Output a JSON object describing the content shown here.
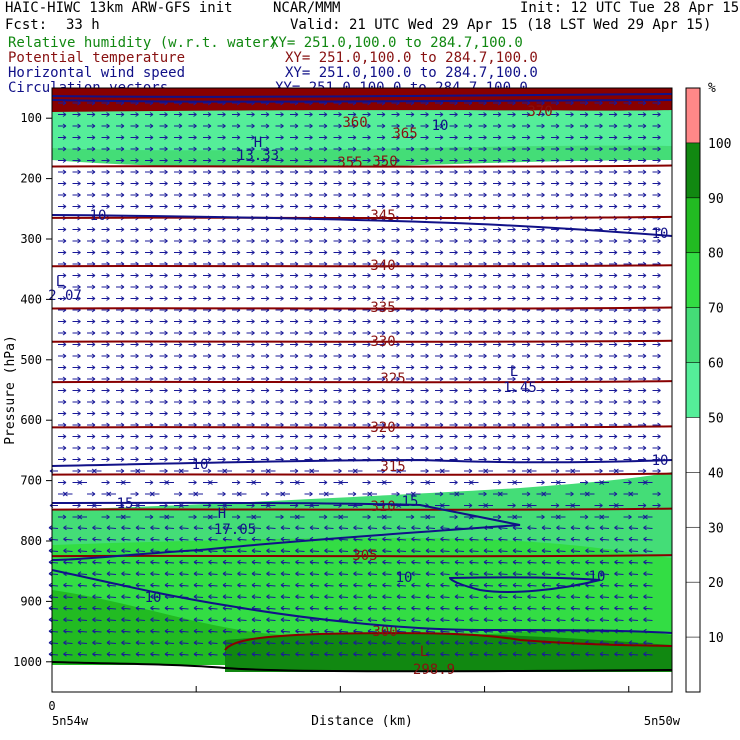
{
  "header": {
    "title": "HAIC-HIWC 13km ARW-GFS init",
    "org": "NCAR/MMM",
    "init": "Init: 12 UTC Tue 28 Apr 15",
    "fcst_label": "Fcst:",
    "fcst_value": "33 h",
    "valid": "Valid: 21 UTC Wed 29 Apr 15 (18 LST Wed 29 Apr 15)",
    "fields": [
      {
        "name": "Relative humidity (w.r.t. water)",
        "xy": "XY= 251.0,100.0 to 284.7,100.0",
        "color": "#118811"
      },
      {
        "name": "Potential temperature",
        "xy": "XY= 251.0,100.0 to 284.7,100.0",
        "color": "#881111"
      },
      {
        "name": "Horizontal wind speed",
        "xy": "XY= 251.0,100.0 to 284.7,100.0",
        "color": "#111188"
      },
      {
        "name": "Circulation vectors",
        "xy": "XY= 251.0,100.0 to 284.7,100.0",
        "color": "#111188"
      }
    ]
  },
  "chart_data": {
    "type": "cross-section",
    "ylabel": "Pressure (hPa)",
    "xlabel": "Distance (km)",
    "yticks": [
      100,
      200,
      300,
      400,
      500,
      600,
      700,
      800,
      900,
      1000
    ],
    "ylim": [
      1050,
      50
    ],
    "x_tick_zero": "0",
    "x_left_label": "5n54w",
    "x_right_label": "5n50w",
    "colorbar": {
      "unit": "%",
      "ticks": [
        10,
        20,
        30,
        40,
        50,
        60,
        70,
        80,
        90,
        100
      ],
      "bands": [
        {
          "from": 50,
          "to": 60,
          "color": "#55ee99"
        },
        {
          "from": 60,
          "to": 70,
          "color": "#44dd77"
        },
        {
          "from": 70,
          "to": 80,
          "color": "#33dd44"
        },
        {
          "from": 80,
          "to": 90,
          "color": "#22bb22"
        },
        {
          "from": 90,
          "to": 100,
          "color": "#118811"
        },
        {
          "from": 100,
          "to": 110,
          "color": "#ff8888"
        }
      ]
    },
    "theta_contours": [
      {
        "value": "370",
        "p": 108
      },
      {
        "value": "365",
        "p": 124
      },
      {
        "value": "360",
        "p": 112
      },
      {
        "value": "355",
        "p": 132
      },
      {
        "value": "350",
        "p": 180
      },
      {
        "value": "345",
        "p": 265
      },
      {
        "value": "340",
        "p": 345
      },
      {
        "value": "335",
        "p": 415
      },
      {
        "value": "330",
        "p": 470
      },
      {
        "value": "325",
        "p": 537
      },
      {
        "value": "320",
        "p": 612
      },
      {
        "value": "315",
        "p": 690
      },
      {
        "value": "310",
        "p": 748
      },
      {
        "value": "305",
        "p": 825
      },
      {
        "value": "300",
        "p": 948
      }
    ],
    "wind_labels": [
      {
        "value": "10",
        "p": 98
      },
      {
        "value": "10",
        "p": 265
      },
      {
        "value": "10",
        "p": 290
      },
      {
        "value": "10",
        "p": 676
      },
      {
        "value": "10",
        "p": 672
      },
      {
        "value": "15",
        "p": 740
      },
      {
        "value": "15",
        "p": 735
      },
      {
        "value": "10",
        "p": 860
      },
      {
        "value": "10",
        "p": 860
      },
      {
        "value": "10",
        "p": 895
      }
    ],
    "extrema": [
      {
        "letter": "H",
        "value": "13.33",
        "p": 150
      },
      {
        "letter": "L",
        "value": "2.07",
        "p": 360
      },
      {
        "letter": "L",
        "value": "1.45",
        "p": 520
      },
      {
        "letter": "H",
        "value": "17.05",
        "p": 765
      },
      {
        "letter": "L",
        "value": "298.9",
        "p": 985
      }
    ]
  }
}
